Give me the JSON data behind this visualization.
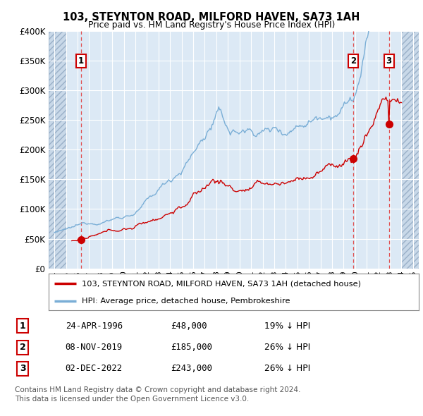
{
  "title": "103, STEYNTON ROAD, MILFORD HAVEN, SA73 1AH",
  "subtitle": "Price paid vs. HM Land Registry's House Price Index (HPI)",
  "legend_line1": "103, STEYNTON ROAD, MILFORD HAVEN, SA73 1AH (detached house)",
  "legend_line2": "HPI: Average price, detached house, Pembrokeshire",
  "transactions": [
    {
      "date_num": 1996.3,
      "price": 48000,
      "label": "1"
    },
    {
      "date_num": 2019.85,
      "price": 185000,
      "label": "2"
    },
    {
      "date_num": 2022.92,
      "price": 243000,
      "label": "3"
    }
  ],
  "table_rows": [
    [
      "1",
      "24-APR-1996",
      "£48,000",
      "19% ↓ HPI"
    ],
    [
      "2",
      "08-NOV-2019",
      "£185,000",
      "26% ↓ HPI"
    ],
    [
      "3",
      "02-DEC-2022",
      "£243,000",
      "26% ↓ HPI"
    ]
  ],
  "footnote1": "Contains HM Land Registry data © Crown copyright and database right 2024.",
  "footnote2": "This data is licensed under the Open Government Licence v3.0.",
  "ylim": [
    0,
    400000
  ],
  "xlim": [
    1993.5,
    2025.5
  ],
  "hatch_left_end": 1995.0,
  "hatch_right_start": 2024.0,
  "plot_bg_color": "#dce9f5",
  "hatch_bg_color": "#c8d8e8",
  "grid_color": "#ffffff",
  "red_line_color": "#cc0000",
  "blue_line_color": "#7aaed6",
  "dashed_vline_color": "#e05050"
}
